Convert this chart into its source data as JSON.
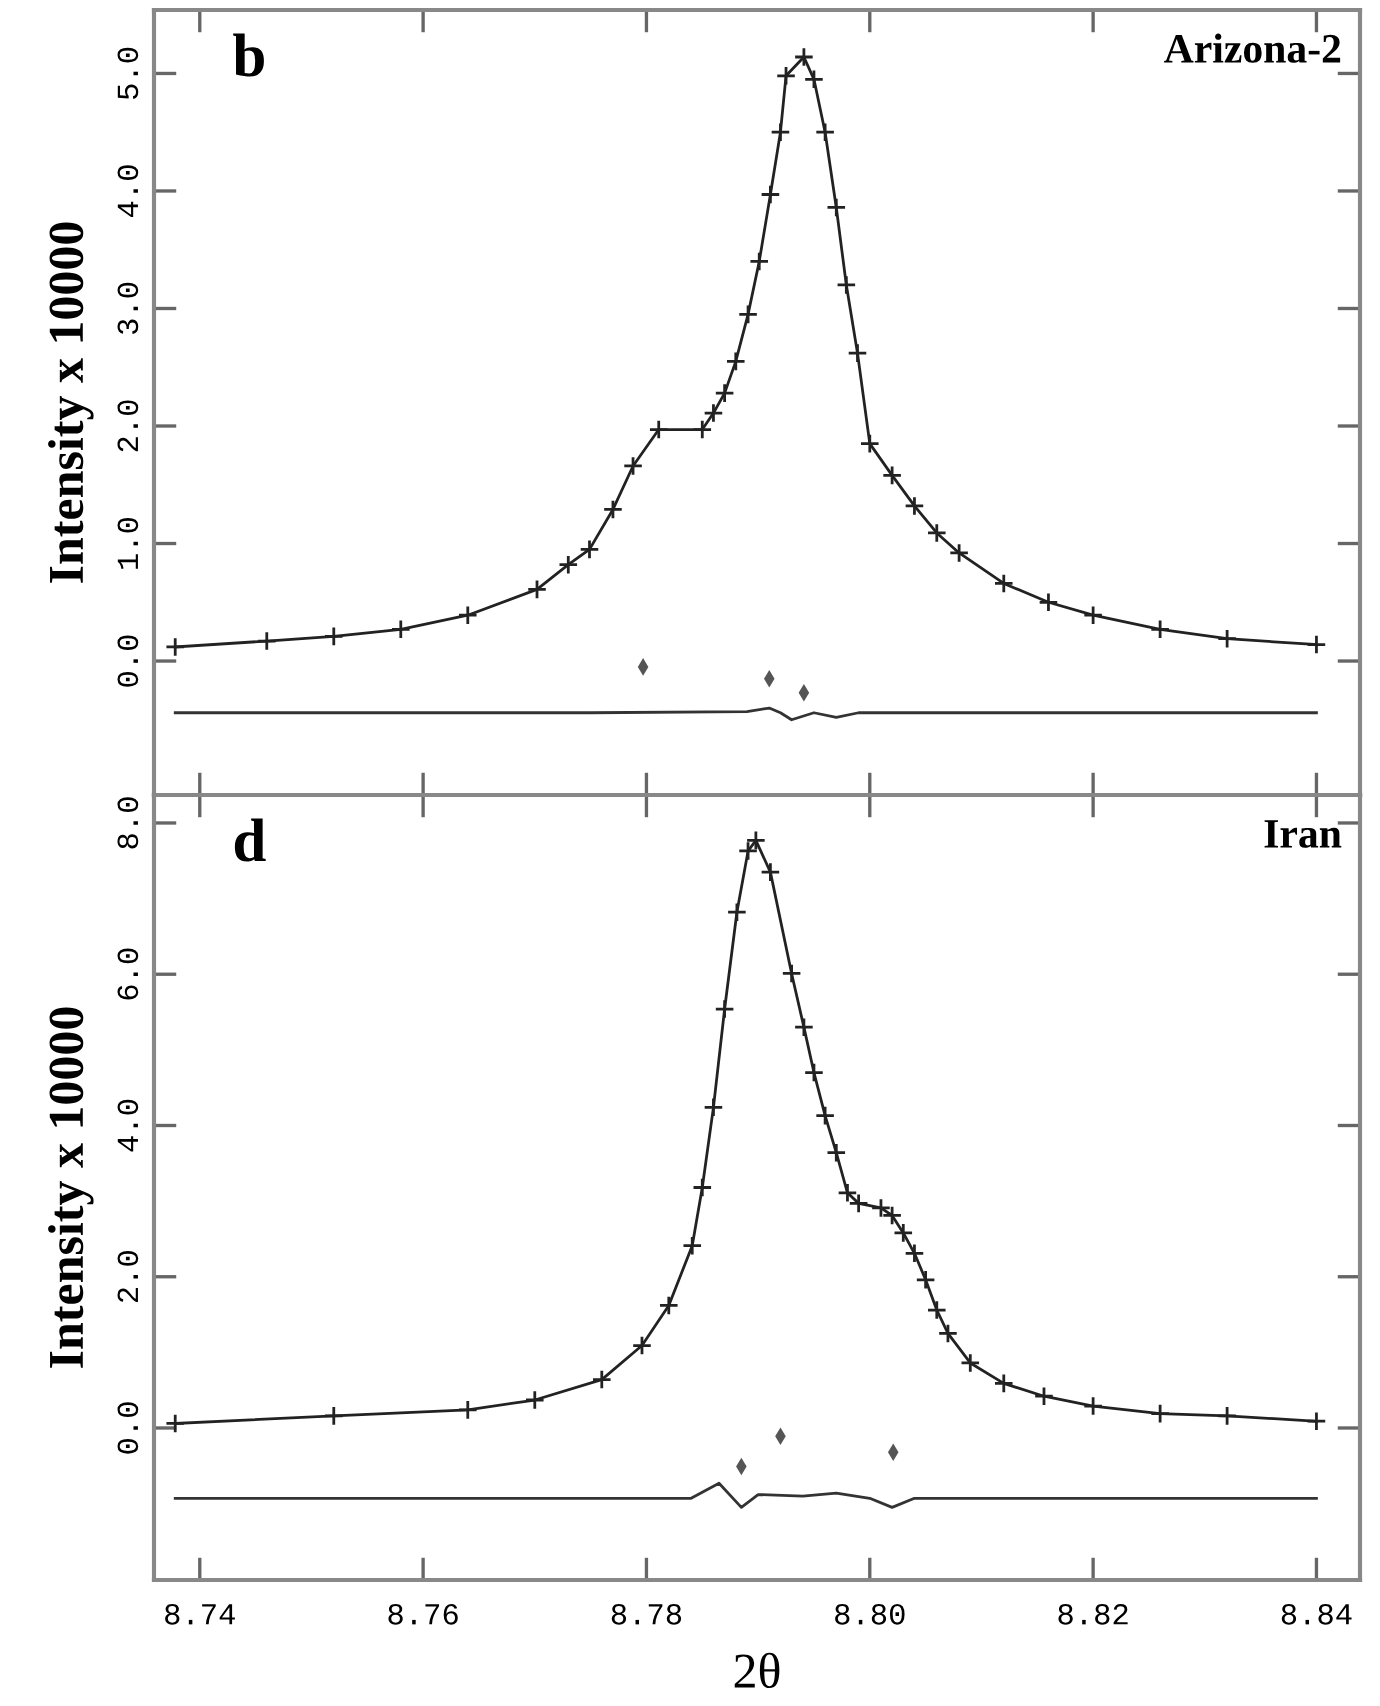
{
  "chart_data": [
    {
      "type": "line",
      "annotations": [
        "b",
        "Arizona-2"
      ],
      "ylabel": "Intensity x 10000",
      "xlim": [
        8.7359,
        8.8439
      ],
      "xticks": [
        8.74,
        8.76,
        8.78,
        8.8,
        8.82,
        8.84
      ],
      "ylim": [
        -1.14,
        5.54
      ],
      "yticks": [
        {
          "value": 0,
          "label": "0.0"
        },
        {
          "value": 1,
          "label": "1.0"
        },
        {
          "value": 2,
          "label": "2.0"
        },
        {
          "value": 3,
          "label": "3.0"
        },
        {
          "value": 4,
          "label": "4.0"
        },
        {
          "value": 5,
          "label": "5.0"
        }
      ],
      "tick_labels": "y",
      "grid": false,
      "legend": false,
      "series": [
        {
          "type": "scatter",
          "marker": "cross",
          "color": "#222222",
          "x": [
            8.7378,
            8.746,
            8.752,
            8.758,
            8.764,
            8.7702,
            8.773,
            8.7749,
            8.777,
            8.7788,
            8.7811,
            8.785,
            8.786,
            8.787,
            8.788,
            8.7891,
            8.7901,
            8.7911,
            8.792,
            8.7925,
            8.7941,
            8.795,
            8.796,
            8.797,
            8.7979,
            8.7989,
            8.8,
            8.802,
            8.804,
            8.806,
            8.808,
            8.812,
            8.816,
            8.82,
            8.826,
            8.832,
            8.84
          ],
          "values": [
            0.12,
            0.17,
            0.21,
            0.27,
            0.39,
            0.61,
            0.82,
            0.95,
            1.29,
            1.66,
            1.97,
            1.97,
            2.11,
            2.28,
            2.55,
            2.95,
            3.4,
            3.97,
            4.5,
            4.98,
            5.14,
            4.95,
            4.5,
            3.86,
            3.2,
            2.62,
            1.85,
            1.58,
            1.32,
            1.09,
            0.92,
            0.66,
            0.5,
            0.39,
            0.27,
            0.19,
            0.14
          ]
        },
        {
          "color": "#222222",
          "x": [
            8.7378,
            8.746,
            8.752,
            8.758,
            8.764,
            8.7702,
            8.773,
            8.7749,
            8.777,
            8.7788,
            8.7811,
            8.785,
            8.786,
            8.787,
            8.788,
            8.7891,
            8.7901,
            8.7911,
            8.792,
            8.7925,
            8.7941,
            8.795,
            8.796,
            8.797,
            8.7979,
            8.7989,
            8.8,
            8.802,
            8.804,
            8.806,
            8.808,
            8.812,
            8.816,
            8.82,
            8.826,
            8.832,
            8.84
          ],
          "values": [
            0.12,
            0.17,
            0.21,
            0.27,
            0.39,
            0.61,
            0.82,
            0.95,
            1.29,
            1.66,
            1.97,
            1.97,
            2.11,
            2.28,
            2.55,
            2.95,
            3.4,
            3.97,
            4.5,
            4.98,
            5.14,
            4.95,
            4.5,
            3.86,
            3.2,
            2.62,
            1.85,
            1.58,
            1.32,
            1.09,
            0.92,
            0.66,
            0.5,
            0.39,
            0.27,
            0.19,
            0.14
          ]
        },
        {
          "color": "#333333",
          "x": [
            8.7378,
            8.775,
            8.789,
            8.791,
            8.792,
            8.793,
            8.795,
            8.797,
            8.799,
            8.801,
            8.84
          ],
          "values": [
            -0.44,
            -0.44,
            -0.43,
            -0.4,
            -0.44,
            -0.5,
            -0.44,
            -0.48,
            -0.44,
            -0.44,
            -0.44
          ]
        },
        {
          "type": "scatter",
          "marker": "diamond",
          "color": "#555555",
          "x": [
            8.7797,
            8.791,
            8.7941
          ],
          "values": [
            -0.05,
            -0.15,
            -0.27
          ]
        }
      ]
    },
    {
      "type": "line",
      "annotations": [
        "d",
        "Iran"
      ],
      "xlabel": "2θ",
      "ylabel": "Intensity x 10000",
      "xlim": [
        8.7359,
        8.8439
      ],
      "xticks": [
        8.74,
        8.76,
        8.78,
        {
          "value": 8.8,
          "label": "8.80"
        },
        8.82,
        8.84
      ],
      "ylim": [
        -2.01,
        8.37
      ],
      "yticks": [
        {
          "value": 0,
          "label": "0.0"
        },
        {
          "value": 2,
          "label": "2.0"
        },
        {
          "value": 4,
          "label": "4.0"
        },
        {
          "value": 6,
          "label": "6.0"
        },
        {
          "value": 8,
          "label": "8.0"
        }
      ],
      "grid": false,
      "legend": false,
      "series": [
        {
          "type": "scatter",
          "marker": "cross",
          "color": "#222222",
          "x": [
            8.7378,
            8.752,
            8.764,
            8.77,
            8.776,
            8.7796,
            8.782,
            8.7841,
            8.785,
            8.786,
            8.787,
            8.7881,
            8.7891,
            8.7898,
            8.7911,
            8.793,
            8.7941,
            8.795,
            8.796,
            8.797,
            8.798,
            8.799,
            8.801,
            8.802,
            8.803,
            8.804,
            8.805,
            8.806,
            8.807,
            8.809,
            8.812,
            8.8156,
            8.82,
            8.826,
            8.832,
            8.84
          ],
          "values": [
            0.06,
            0.16,
            0.24,
            0.37,
            0.64,
            1.09,
            1.62,
            2.41,
            3.18,
            4.24,
            5.54,
            6.82,
            7.63,
            7.77,
            7.35,
            6.01,
            5.3,
            4.7,
            4.13,
            3.64,
            3.11,
            2.97,
            2.91,
            2.81,
            2.58,
            2.31,
            1.96,
            1.56,
            1.25,
            0.86,
            0.59,
            0.42,
            0.29,
            0.19,
            0.16,
            0.09
          ]
        },
        {
          "color": "#222222",
          "x": [
            8.7378,
            8.752,
            8.764,
            8.77,
            8.776,
            8.7796,
            8.782,
            8.7841,
            8.785,
            8.786,
            8.787,
            8.7881,
            8.7891,
            8.7898,
            8.7911,
            8.793,
            8.7941,
            8.795,
            8.796,
            8.797,
            8.798,
            8.799,
            8.801,
            8.802,
            8.803,
            8.804,
            8.805,
            8.806,
            8.807,
            8.809,
            8.812,
            8.8156,
            8.82,
            8.826,
            8.832,
            8.84
          ],
          "values": [
            0.06,
            0.16,
            0.24,
            0.37,
            0.64,
            1.09,
            1.62,
            2.41,
            3.18,
            4.24,
            5.54,
            6.82,
            7.63,
            7.77,
            7.35,
            6.01,
            5.3,
            4.7,
            4.13,
            3.64,
            3.11,
            2.97,
            2.91,
            2.81,
            2.58,
            2.31,
            1.96,
            1.56,
            1.25,
            0.86,
            0.59,
            0.42,
            0.29,
            0.19,
            0.16,
            0.09
          ]
        },
        {
          "color": "#333333",
          "x": [
            8.7378,
            8.784,
            8.7865,
            8.7885,
            8.79,
            8.794,
            8.797,
            8.8,
            8.802,
            8.804,
            8.84
          ],
          "values": [
            -0.93,
            -0.93,
            -0.73,
            -1.05,
            -0.88,
            -0.9,
            -0.86,
            -0.93,
            -1.05,
            -0.93,
            -0.93
          ]
        },
        {
          "type": "scatter",
          "marker": "diamond",
          "color": "#555555",
          "x": [
            8.7885,
            8.792,
            8.8021
          ],
          "values": [
            -0.51,
            -0.11,
            -0.32
          ]
        }
      ]
    }
  ]
}
